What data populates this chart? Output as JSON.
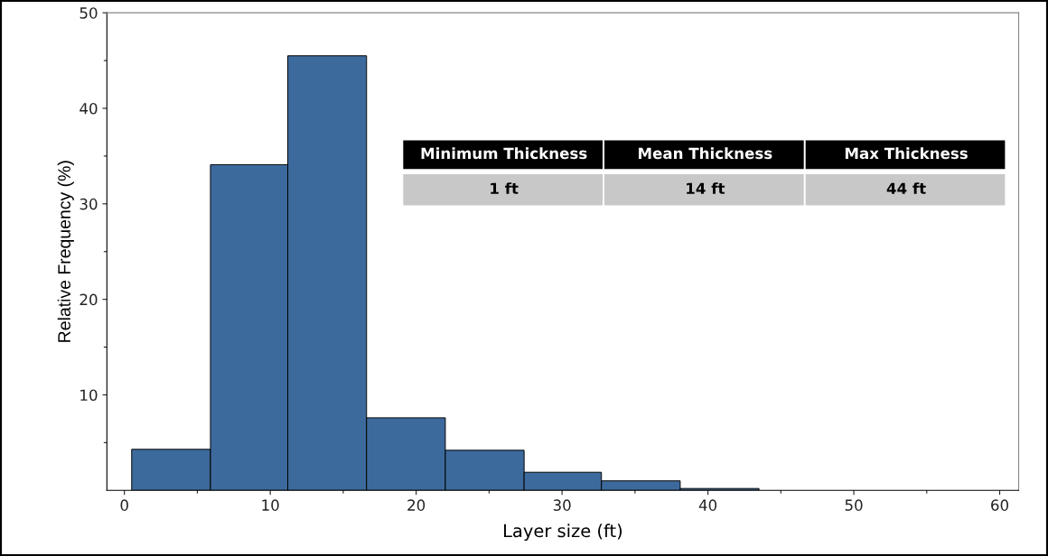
{
  "chart_data": {
    "type": "histogram",
    "xlabel": "Layer size (ft)",
    "ylabel": "Relative Frequency (%)",
    "bins": [
      0.5,
      5.9,
      11.2,
      16.6,
      22.0,
      27.4,
      32.7,
      38.1,
      43.5
    ],
    "values": [
      4.3,
      34.1,
      45.5,
      7.6,
      4.2,
      1.9,
      1.0,
      0.2
    ],
    "color": "#3d6a9c",
    "xlim": [
      -1.2,
      61.3
    ],
    "ylim": [
      0,
      50
    ],
    "xticks": [
      0,
      {
        "value": 5,
        "label": null
      },
      10,
      {
        "value": 15,
        "label": null
      },
      20,
      {
        "value": 25,
        "label": null
      },
      30,
      {
        "value": 35,
        "label": null
      },
      40,
      {
        "value": 45,
        "label": null
      },
      50,
      {
        "value": 55,
        "label": null
      },
      60
    ],
    "yticks": [
      {
        "value": 5,
        "label": null
      },
      10,
      {
        "value": 15,
        "label": null
      },
      20,
      {
        "value": 25,
        "label": null
      },
      30,
      {
        "value": 35,
        "label": null
      },
      40,
      {
        "value": 45,
        "label": null
      },
      50
    ],
    "grid": false,
    "annotations": [
      "Minimum Thickness",
      "Mean Thickness",
      "Max Thickness",
      "1 ft",
      "14 ft",
      "44 ft"
    ]
  }
}
